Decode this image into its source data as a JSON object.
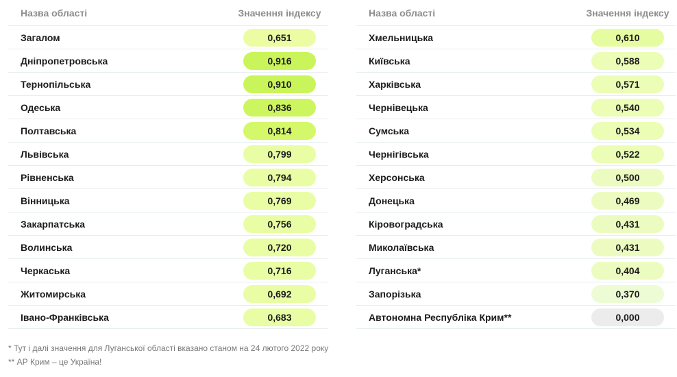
{
  "headers": {
    "name": "Назва області",
    "value": "Значення індексу"
  },
  "left_rows": [
    {
      "name": "Загалом",
      "value": "0,651",
      "color": "#ecfca3"
    },
    {
      "name": "Дніпропетровська",
      "value": "0,916",
      "color": "#caf55a"
    },
    {
      "name": "Тернопільська",
      "value": "0,910",
      "color": "#caf55a"
    },
    {
      "name": "Одеська",
      "value": "0,836",
      "color": "#cdf55f"
    },
    {
      "name": "Полтавська",
      "value": "0,814",
      "color": "#d4f869"
    },
    {
      "name": "Львівська",
      "value": "0,799",
      "color": "#e9fda5"
    },
    {
      "name": "Рівненська",
      "value": "0,794",
      "color": "#e9fda5"
    },
    {
      "name": "Вінницька",
      "value": "0,769",
      "color": "#e9fda5"
    },
    {
      "name": "Закарпатська",
      "value": "0,756",
      "color": "#e9fda5"
    },
    {
      "name": "Волинська",
      "value": "0,720",
      "color": "#e9fda5"
    },
    {
      "name": "Черкаська",
      "value": "0,716",
      "color": "#e9fda5"
    },
    {
      "name": "Житомирська",
      "value": "0,692",
      "color": "#e9fda5"
    },
    {
      "name": "Івано-Франківська",
      "value": "0,683",
      "color": "#e9fda5"
    }
  ],
  "right_rows": [
    {
      "name": "Хмельницька",
      "value": "0,610",
      "color": "#e6fca0"
    },
    {
      "name": "Київська",
      "value": "0,588",
      "color": "#ecfdb6"
    },
    {
      "name": "Харківська",
      "value": "0,571",
      "color": "#ecfdb6"
    },
    {
      "name": "Чернівецька",
      "value": "0,540",
      "color": "#ecfdb6"
    },
    {
      "name": "Сумська",
      "value": "0,534",
      "color": "#ecfdb6"
    },
    {
      "name": "Чернігівська",
      "value": "0,522",
      "color": "#ecfdb6"
    },
    {
      "name": "Херсонська",
      "value": "0,500",
      "color": "#ecfcc0"
    },
    {
      "name": "Донецька",
      "value": "0,469",
      "color": "#ecfcc0"
    },
    {
      "name": "Кіровоградська",
      "value": "0,431",
      "color": "#ecfcc0"
    },
    {
      "name": "Миколаївська",
      "value": "0,431",
      "color": "#ecfcc0"
    },
    {
      "name": "Луганська*",
      "value": "0,404",
      "color": "#ecfcc0"
    },
    {
      "name": "Запорізька",
      "value": "0,370",
      "color": "#eefcd6"
    },
    {
      "name": "Автономна Республіка Крим**",
      "value": "0,000",
      "color": "#ececec"
    }
  ],
  "footnotes": {
    "note1": "* Тут і далі значення для Луганської області вказано станом на 24 лютого 2022 року",
    "note2": "** АР Крим – це Україна!"
  }
}
